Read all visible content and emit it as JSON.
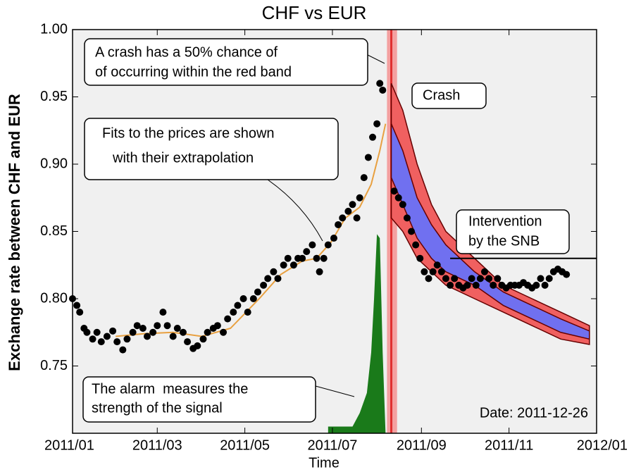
{
  "chart_data": {
    "type": "scatter",
    "title": "CHF vs EUR",
    "xlabel": "Time",
    "ylabel": "Exchange rate between CHF and EUR",
    "xlim": [
      0,
      365
    ],
    "xticks": [
      {
        "value": 0,
        "label": "2011/01"
      },
      {
        "value": 59,
        "label": "2011/03"
      },
      {
        "value": 120,
        "label": "2011/05"
      },
      {
        "value": 181,
        "label": "2011/07"
      },
      {
        "value": 243,
        "label": "2011/09"
      },
      {
        "value": 304,
        "label": "2011/11"
      },
      {
        "value": 365,
        "label": "2012/01"
      }
    ],
    "ylim": [
      0.7,
      1.0
    ],
    "yticks": [
      0.75,
      {
        "value": 0.8,
        "label": "0.80"
      },
      0.85,
      {
        "value": 0.9,
        "label": "0.90"
      },
      0.95,
      {
        "value": 1.0,
        "label": "1.00"
      }
    ],
    "points": {
      "color": "#000000",
      "x": [
        0,
        3,
        5,
        8,
        10,
        14,
        17,
        20,
        24,
        28,
        31,
        35,
        38,
        42,
        45,
        49,
        52,
        56,
        59,
        63,
        66,
        70,
        73,
        77,
        80,
        84,
        87,
        91,
        94,
        98,
        101,
        105,
        108,
        112,
        115,
        119,
        122,
        126,
        129,
        133,
        136,
        140,
        143,
        147,
        150,
        154,
        157,
        160,
        163,
        167,
        170,
        172,
        175,
        178,
        182,
        185,
        188,
        192,
        195,
        198,
        200,
        203,
        206,
        209,
        212,
        214,
        216,
        224,
        227,
        230,
        233,
        236,
        239,
        242,
        245,
        248,
        251,
        254,
        257,
        260,
        263,
        266,
        269,
        272,
        275,
        278,
        281,
        284,
        287,
        290,
        293,
        296,
        299,
        302,
        305,
        308,
        311,
        314,
        317,
        320,
        323,
        326,
        329,
        332,
        335,
        338,
        341,
        344
      ],
      "y": [
        0.8,
        0.795,
        0.79,
        0.778,
        0.775,
        0.77,
        0.775,
        0.768,
        0.772,
        0.776,
        0.768,
        0.762,
        0.77,
        0.775,
        0.78,
        0.778,
        0.772,
        0.775,
        0.78,
        0.79,
        0.78,
        0.772,
        0.778,
        0.775,
        0.768,
        0.763,
        0.765,
        0.77,
        0.775,
        0.778,
        0.78,
        0.775,
        0.785,
        0.79,
        0.795,
        0.8,
        0.79,
        0.8,
        0.805,
        0.81,
        0.815,
        0.82,
        0.815,
        0.825,
        0.83,
        0.825,
        0.83,
        0.83,
        0.835,
        0.84,
        0.83,
        0.82,
        0.83,
        0.84,
        0.845,
        0.855,
        0.86,
        0.865,
        0.87,
        0.86,
        0.875,
        0.89,
        0.905,
        0.92,
        0.93,
        0.96,
        0.955,
        0.88,
        0.875,
        0.87,
        0.86,
        0.85,
        0.84,
        0.83,
        0.82,
        0.815,
        0.82,
        0.825,
        0.82,
        0.815,
        0.81,
        0.815,
        0.81,
        0.808,
        0.81,
        0.815,
        0.81,
        0.815,
        0.82,
        0.815,
        0.81,
        0.815,
        0.81,
        0.808,
        0.81,
        0.81,
        0.81,
        0.812,
        0.81,
        0.808,
        0.81,
        0.815,
        0.81,
        0.815,
        0.82,
        0.822,
        0.82,
        0.818
      ]
    },
    "fit": {
      "color": "#e8a040",
      "x": [
        30,
        50,
        70,
        90,
        110,
        130,
        145,
        160,
        170,
        180,
        190,
        200,
        208,
        214,
        218
      ],
      "y": [
        0.772,
        0.774,
        0.775,
        0.772,
        0.778,
        0.8,
        0.818,
        0.828,
        0.83,
        0.842,
        0.86,
        0.868,
        0.885,
        0.91,
        0.93
      ]
    },
    "bands": [
      {
        "color": "#f06060",
        "x": [
          222,
          230,
          240,
          250,
          260,
          280,
          300,
          320,
          340,
          360
        ],
        "upper": [
          0.96,
          0.94,
          0.9,
          0.87,
          0.85,
          0.83,
          0.81,
          0.8,
          0.79,
          0.78
        ],
        "lower": [
          0.86,
          0.85,
          0.83,
          0.82,
          0.81,
          0.8,
          0.79,
          0.78,
          0.77,
          0.766
        ]
      },
      {
        "color": "#7070f0",
        "x": [
          222,
          230,
          240,
          250,
          260,
          280,
          300,
          320,
          340,
          360
        ],
        "upper": [
          0.93,
          0.91,
          0.875,
          0.855,
          0.84,
          0.82,
          0.805,
          0.795,
          0.785,
          0.776
        ],
        "lower": [
          0.89,
          0.87,
          0.845,
          0.83,
          0.82,
          0.81,
          0.795,
          0.785,
          0.775,
          0.77
        ]
      }
    ],
    "alarm": {
      "color": "#1a7a1a",
      "x": [
        178,
        195,
        200,
        205,
        208,
        210,
        212,
        214,
        216,
        218
      ],
      "y": [
        0.705,
        0.705,
        0.715,
        0.73,
        0.76,
        0.8,
        0.848,
        0.845,
        0.76,
        0.7
      ]
    },
    "crash_band": [
      219,
      226
    ],
    "crash_line": 222,
    "intervention": {
      "x": [
        263,
        365
      ],
      "y": 0.83
    },
    "annotations": [
      {
        "lines": [
          "A crash has a 50% chance of",
          "of occurring within the red band"
        ]
      },
      {
        "lines": [
          "Crash"
        ]
      },
      {
        "lines": [
          "Fits to the prices are shown",
          "with their extrapolation"
        ]
      },
      {
        "lines": [
          "Intervention",
          "by the SNB"
        ]
      },
      {
        "lines": [
          "The alarm  measures the",
          "strength of the signal"
        ]
      }
    ],
    "date_label": "Date: 2011-12-26"
  }
}
